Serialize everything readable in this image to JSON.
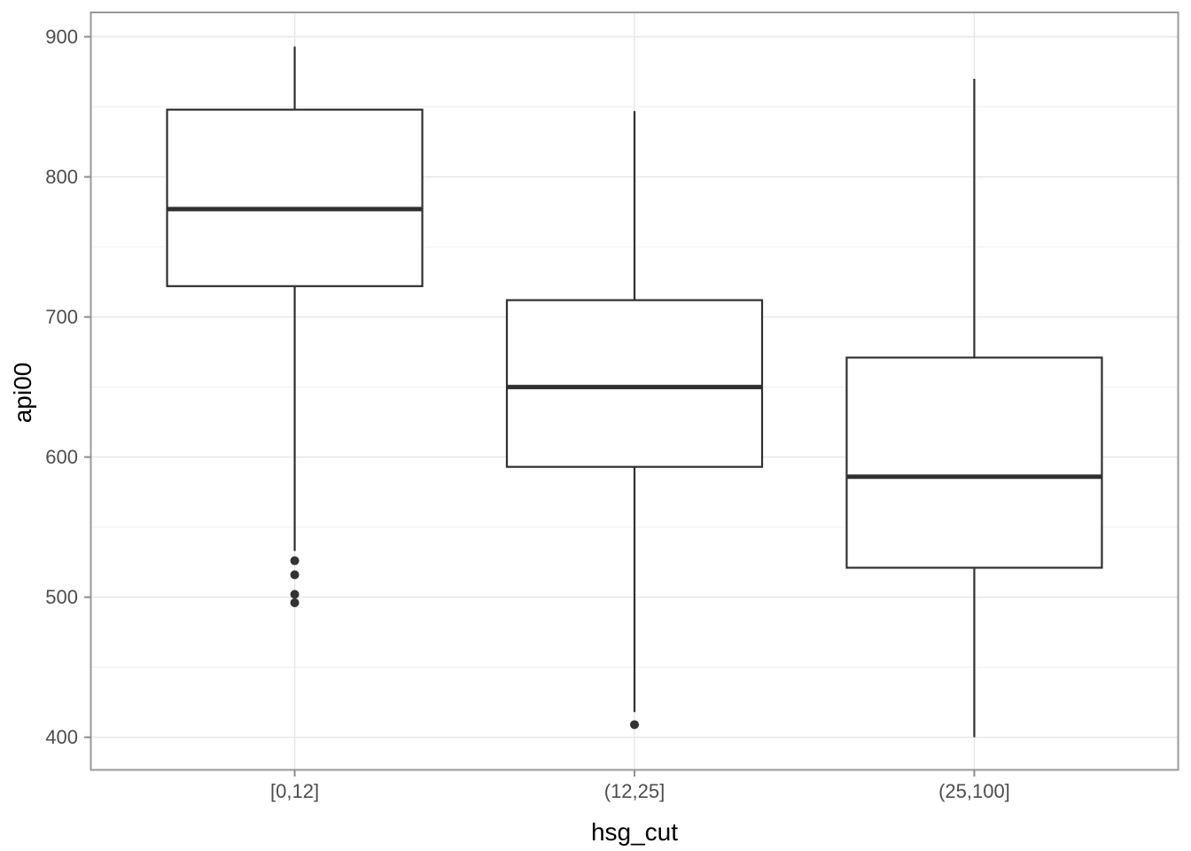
{
  "figure": {
    "background": "#ffffff"
  },
  "axes": {
    "x_title": "hsg_cut",
    "y_title": "api00"
  },
  "chart_data": {
    "type": "boxplot",
    "title": "",
    "xlabel": "hsg_cut",
    "ylabel": "api00",
    "categories": [
      "[0,12]",
      "(12,25]",
      "(25,100]"
    ],
    "y_axis": {
      "tick_values": [
        400,
        500,
        600,
        700,
        800,
        900
      ],
      "tick_labels": [
        "400",
        "500",
        "600",
        "700",
        "800",
        "900"
      ],
      "minor_gridlines": [
        450,
        550,
        650,
        750,
        850
      ],
      "ylim": [
        376.7,
        917.4
      ]
    },
    "grid": "major-and-minor, light gray on white, vertical major at each category",
    "legend": "none",
    "boxes": [
      {
        "category": "[0,12]",
        "whisker_low": 533,
        "q1": 722,
        "median": 777,
        "q3": 848,
        "whisker_high": 893,
        "outliers": [
          526,
          516,
          502,
          496
        ]
      },
      {
        "category": "(12,25]",
        "whisker_low": 418,
        "q1": 593,
        "median": 650,
        "q3": 712,
        "whisker_high": 847,
        "outliers": [
          409
        ]
      },
      {
        "category": "(25,100]",
        "whisker_low": 400,
        "q1": 521,
        "median": 586,
        "q3": 671,
        "whisker_high": 870,
        "outliers": []
      }
    ]
  },
  "colors": {
    "background": "#ffffff",
    "panel_border": "#9a9a9a",
    "grid_major": "#e6e6e6",
    "grid_minor": "#f2f2f2",
    "box_stroke": "#303030",
    "box_fill": "#ffffff",
    "outlier_fill": "#333333",
    "tick_mark": "#8c8c8c",
    "tick_label": "#4d4d4d",
    "axis_title": "#000000"
  }
}
